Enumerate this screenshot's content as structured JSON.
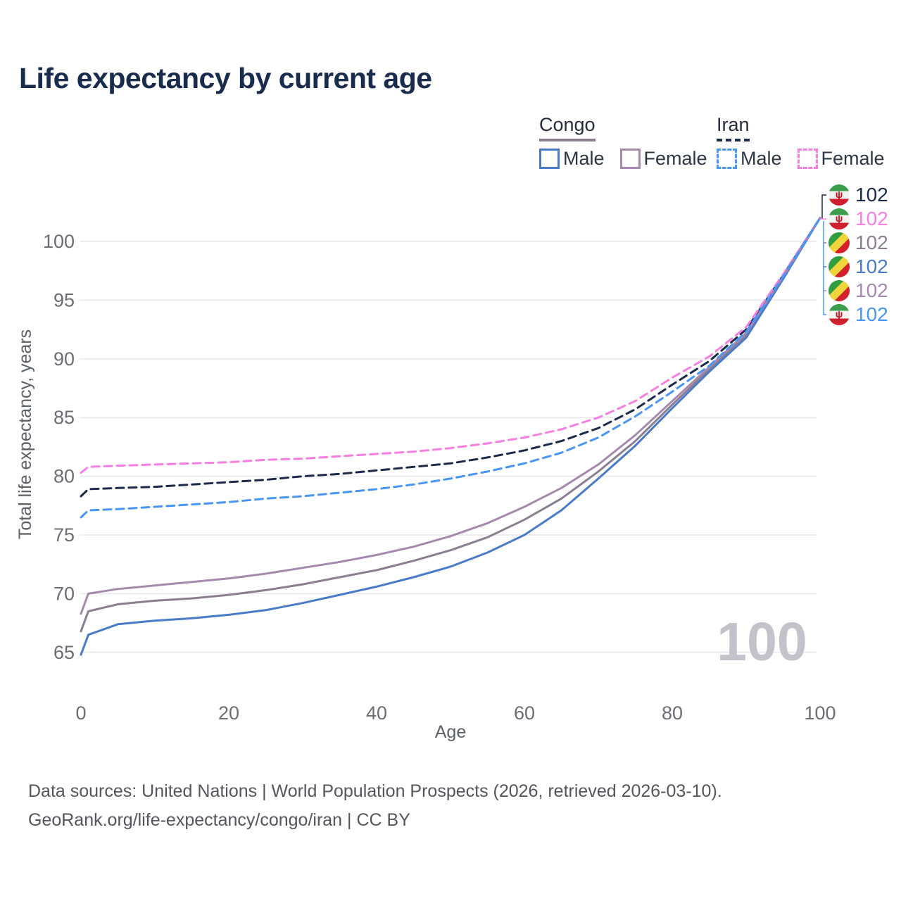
{
  "title": "Life expectancy by current age",
  "watermark": "100",
  "legend": {
    "groups": [
      {
        "name": "Congo",
        "underline_style": "solid",
        "underline_color": "#8b7e91",
        "items": [
          {
            "label": "Male",
            "color": "#4a7bc8",
            "style": "solid"
          },
          {
            "label": "Female",
            "color": "#a58aad",
            "style": "solid"
          }
        ]
      },
      {
        "name": "Iran",
        "underline_style": "dashed",
        "underline_color": "#1c2b4a",
        "items": [
          {
            "label": "Male",
            "color": "#4996f5",
            "style": "dashed"
          },
          {
            "label": "Female",
            "color": "#f77fe0",
            "style": "dashed"
          }
        ]
      }
    ]
  },
  "icons": {
    "iran-flag-emblem": "ψ"
  },
  "chart_data": {
    "type": "line",
    "title": "Life expectancy by current age",
    "xlabel": "Age",
    "ylabel": "Total life expectancy, years",
    "xlim": [
      0,
      100
    ],
    "ylim": [
      63,
      103
    ],
    "x_ticks": [
      0,
      20,
      40,
      60,
      80,
      100
    ],
    "y_ticks": [
      65,
      70,
      75,
      80,
      85,
      90,
      95,
      100
    ],
    "grid": "horizontal",
    "legend_position": "top-right",
    "x": [
      0,
      1,
      5,
      10,
      15,
      20,
      25,
      30,
      35,
      40,
      45,
      50,
      55,
      60,
      65,
      70,
      75,
      80,
      85,
      90,
      95,
      100
    ],
    "series": [
      {
        "name": "Iran (both sexes)",
        "country": "Iran",
        "sex": "both",
        "color": "#1c2b4a",
        "dash": true,
        "flag": "iran",
        "end_label": "102",
        "values": [
          78.3,
          78.9,
          79.0,
          79.1,
          79.3,
          79.5,
          79.7,
          80.0,
          80.2,
          80.5,
          80.8,
          81.1,
          81.6,
          82.2,
          83.0,
          84.1,
          85.7,
          87.8,
          89.8,
          92.5,
          97.1,
          102
        ]
      },
      {
        "name": "Iran Female",
        "country": "Iran",
        "sex": "female",
        "color": "#f77fe0",
        "dash": true,
        "flag": "iran",
        "end_label": "102",
        "values": [
          80.3,
          80.8,
          80.9,
          81.0,
          81.1,
          81.2,
          81.4,
          81.5,
          81.7,
          81.9,
          82.1,
          82.4,
          82.8,
          83.3,
          84.0,
          85.0,
          86.4,
          88.4,
          90.2,
          92.7,
          97.2,
          102
        ]
      },
      {
        "name": "Congo (both sexes)",
        "country": "Congo",
        "sex": "both",
        "color": "#8b7e91",
        "dash": false,
        "flag": "congo",
        "end_label": "102",
        "values": [
          66.8,
          68.5,
          69.1,
          69.4,
          69.6,
          69.9,
          70.3,
          70.8,
          71.4,
          72.0,
          72.8,
          73.7,
          74.8,
          76.3,
          78.1,
          80.4,
          83.0,
          86.1,
          89.1,
          92.0,
          96.9,
          102
        ]
      },
      {
        "name": "Congo Male",
        "country": "Congo",
        "sex": "male",
        "color": "#4a7bc8",
        "dash": false,
        "flag": "congo",
        "end_label": "102",
        "values": [
          64.8,
          66.5,
          67.4,
          67.7,
          67.9,
          68.2,
          68.6,
          69.2,
          69.9,
          70.6,
          71.4,
          72.3,
          73.5,
          75.0,
          77.1,
          79.8,
          82.6,
          85.8,
          88.9,
          91.8,
          96.8,
          102
        ]
      },
      {
        "name": "Congo Female",
        "country": "Congo",
        "sex": "female",
        "color": "#a58aad",
        "dash": false,
        "flag": "congo",
        "end_label": "102",
        "values": [
          68.3,
          70.0,
          70.4,
          70.7,
          71.0,
          71.3,
          71.7,
          72.2,
          72.7,
          73.3,
          74.0,
          74.9,
          76.0,
          77.4,
          79.0,
          81.0,
          83.5,
          86.4,
          89.3,
          92.2,
          97.0,
          102
        ]
      },
      {
        "name": "Iran Male",
        "country": "Iran",
        "sex": "male",
        "color": "#4996f5",
        "dash": true,
        "flag": "iran",
        "end_label": "102",
        "values": [
          76.5,
          77.1,
          77.2,
          77.4,
          77.6,
          77.8,
          78.1,
          78.3,
          78.6,
          78.9,
          79.3,
          79.8,
          80.4,
          81.1,
          82.0,
          83.3,
          85.1,
          87.2,
          89.4,
          92.3,
          97.0,
          102
        ]
      }
    ]
  },
  "footer": {
    "line1": "Data sources: United Nations | World Population Prospects (2026, retrieved 2026-03-10).",
    "line2": "GeoRank.org/life-expectancy/congo/iran | CC BY"
  }
}
